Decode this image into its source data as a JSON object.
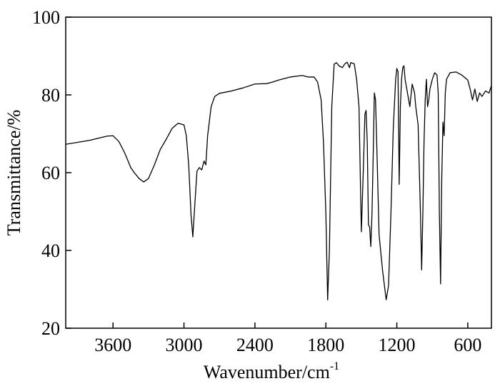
{
  "chart_data": {
    "type": "line",
    "xlabel": {
      "text": "Wavenumber/cm",
      "superscript": "-1"
    },
    "ylabel": "Transmittance/%",
    "xlim": [
      4000,
      400
    ],
    "ylim": [
      20,
      100
    ],
    "xticks": [
      3600,
      3000,
      2400,
      1800,
      1200,
      600
    ],
    "yticks": [
      20,
      40,
      60,
      80,
      100
    ],
    "x": [
      4000,
      3800,
      3650,
      3600,
      3550,
      3500,
      3450,
      3420,
      3380,
      3340,
      3300,
      3250,
      3200,
      3150,
      3100,
      3050,
      3000,
      2980,
      2960,
      2940,
      2925,
      2910,
      2890,
      2870,
      2850,
      2830,
      2815,
      2800,
      2770,
      2740,
      2700,
      2600,
      2500,
      2400,
      2300,
      2250,
      2200,
      2100,
      2000,
      1950,
      1900,
      1870,
      1840,
      1820,
      1800,
      1785,
      1770,
      1760,
      1750,
      1730,
      1710,
      1690,
      1660,
      1640,
      1620,
      1600,
      1590,
      1560,
      1540,
      1520,
      1500,
      1480,
      1470,
      1460,
      1450,
      1440,
      1430,
      1420,
      1410,
      1400,
      1390,
      1380,
      1370,
      1350,
      1320,
      1290,
      1270,
      1250,
      1230,
      1210,
      1200,
      1190,
      1180,
      1170,
      1160,
      1150,
      1140,
      1130,
      1110,
      1090,
      1070,
      1050,
      1040,
      1020,
      1000,
      990,
      980,
      970,
      960,
      950,
      940,
      930,
      920,
      900,
      880,
      860,
      850,
      840,
      830,
      820,
      810,
      800,
      790,
      780,
      750,
      700,
      650,
      600,
      580,
      560,
      540,
      520,
      500,
      480,
      450,
      420,
      400
    ],
    "series": [
      {
        "color": "#000000",
        "values": [
          67.3,
          68.3,
          69.4,
          69.5,
          68,
          65,
          61.3,
          60,
          58.5,
          57.6,
          58.5,
          62,
          66,
          68.6,
          71.4,
          72.7,
          72.3,
          69.5,
          62,
          49,
          43.5,
          51,
          60.4,
          61.3,
          60.7,
          63,
          62,
          69.5,
          77,
          79.6,
          80.4,
          81,
          81.8,
          82.8,
          82.9,
          83.3,
          83.8,
          84.6,
          85,
          84.6,
          84.6,
          83.3,
          78.7,
          67.7,
          49.4,
          27.3,
          40,
          58.5,
          77,
          87.9,
          88.3,
          87.5,
          87,
          88,
          88.4,
          87,
          88.3,
          88,
          84,
          77,
          44.8,
          64,
          75,
          76,
          67.7,
          46.6,
          46,
          41,
          49.4,
          64,
          80.5,
          78.7,
          67.7,
          44,
          34.7,
          27.3,
          31,
          49.4,
          71.4,
          84,
          86.8,
          86,
          57,
          77,
          84,
          87,
          87.5,
          84,
          80.5,
          77,
          82.8,
          80.5,
          77,
          72.3,
          49.4,
          35,
          49.4,
          67.7,
          78.7,
          84,
          77,
          78.7,
          81.5,
          84,
          85.7,
          85.1,
          80.5,
          49.4,
          31.4,
          58.5,
          73,
          69.5,
          80.5,
          84,
          85.7,
          85.9,
          85.1,
          83.8,
          81.5,
          78.7,
          81.5,
          78.3,
          80.5,
          79.6,
          81,
          80.5,
          82.4
        ]
      }
    ]
  }
}
